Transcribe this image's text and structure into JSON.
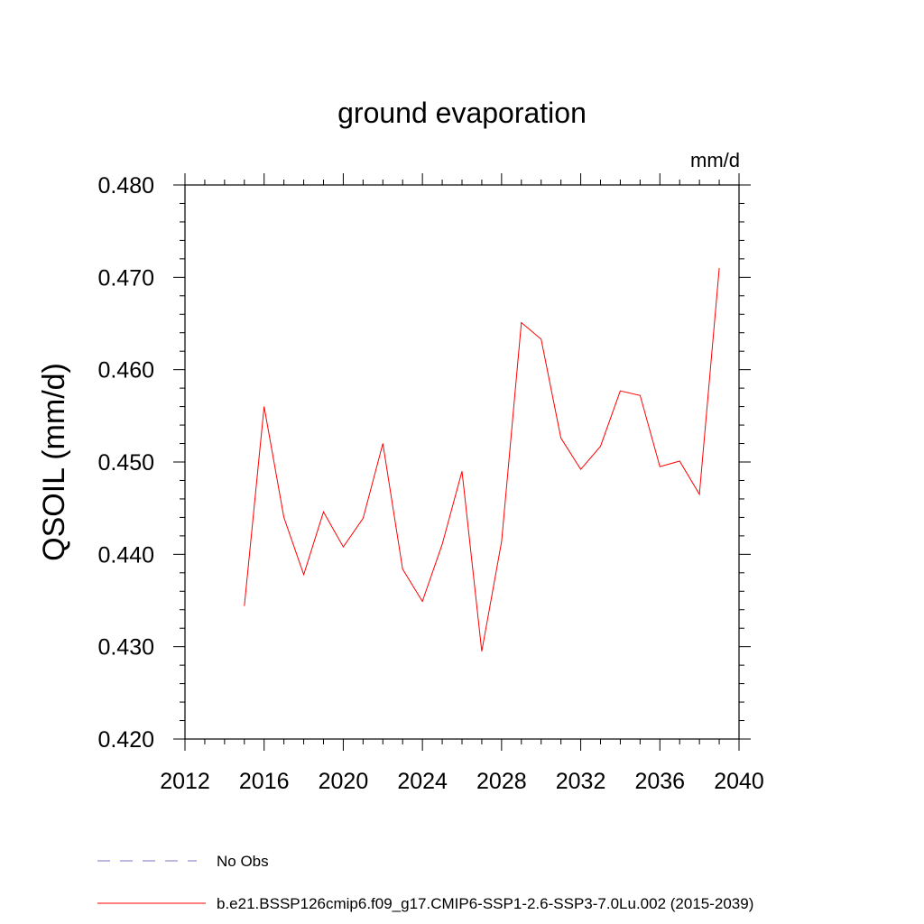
{
  "chart_data": {
    "type": "line",
    "title": "ground evaporation",
    "units_label": "mm/d",
    "xlabel": "",
    "ylabel": "QSOIL  (mm/d)",
    "xlim": [
      2012,
      2040
    ],
    "ylim": [
      0.42,
      0.48
    ],
    "x_ticks": [
      2012,
      2016,
      2020,
      2024,
      2028,
      2032,
      2036,
      2040
    ],
    "x_tick_labels": [
      "2012",
      "2016",
      "2020",
      "2024",
      "2028",
      "2032",
      "2036",
      "2040"
    ],
    "y_ticks": [
      0.42,
      0.43,
      0.44,
      0.45,
      0.46,
      0.47,
      0.48
    ],
    "y_tick_labels": [
      "0.420",
      "0.430",
      "0.440",
      "0.450",
      "0.460",
      "0.470",
      "0.480"
    ],
    "grid": false,
    "legend_position": "bottom",
    "series": [
      {
        "name": "b.e21.BSSP126cmip6.f09_g17.CMIP6-SSP1-2.6-SSP3-7.0Lu.002 (2015-2039)",
        "color": "#ff0000",
        "dash": "solid",
        "x": [
          2015,
          2016,
          2017,
          2018,
          2019,
          2020,
          2021,
          2022,
          2023,
          2024,
          2025,
          2026,
          2027,
          2028,
          2029,
          2030,
          2031,
          2032,
          2033,
          2034,
          2035,
          2036,
          2037,
          2038,
          2039
        ],
        "values": [
          0.4344,
          0.456,
          0.444,
          0.4378,
          0.4446,
          0.4408,
          0.4439,
          0.452,
          0.4384,
          0.4349,
          0.4411,
          0.449,
          0.4295,
          0.4414,
          0.4651,
          0.4633,
          0.4526,
          0.4492,
          0.4517,
          0.4577,
          0.4572,
          0.4495,
          0.4501,
          0.4465,
          0.471
        ]
      }
    ],
    "legend": [
      {
        "label": "No Obs",
        "color": "#7f6fbf",
        "dash": "dashed"
      },
      {
        "label": "b.e21.BSSP126cmip6.f09_g17.CMIP6-SSP1-2.6-SSP3-7.0Lu.002 (2015-2039)",
        "color": "#ff0000",
        "dash": "solid"
      }
    ]
  }
}
